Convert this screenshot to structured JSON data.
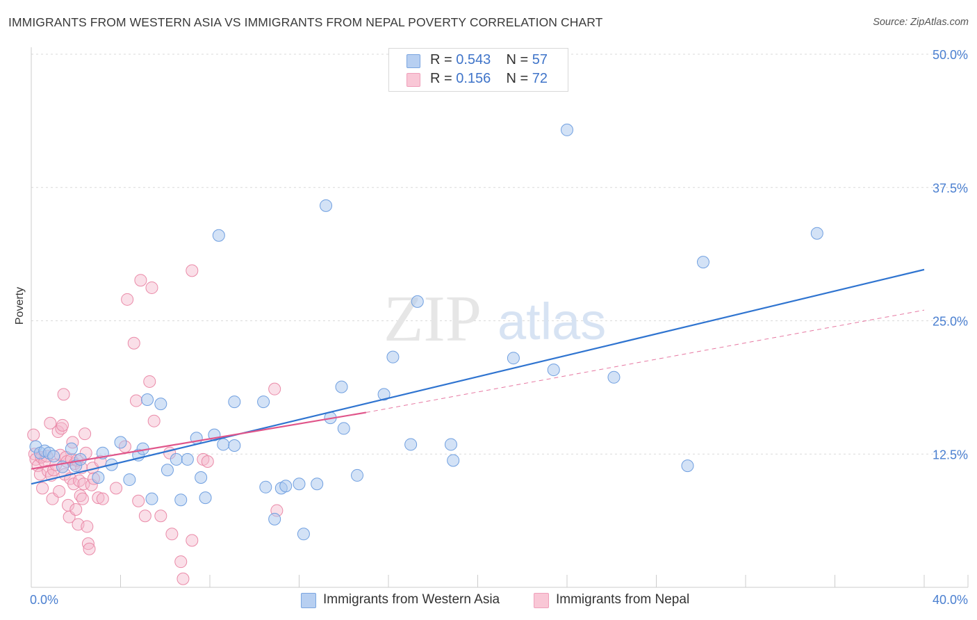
{
  "header": {
    "title": "IMMIGRANTS FROM WESTERN ASIA VS IMMIGRANTS FROM NEPAL POVERTY CORRELATION CHART",
    "source": "Source: ZipAtlas.com"
  },
  "watermark": {
    "zip": "ZIP",
    "atlas": "atlas"
  },
  "legend": {
    "items": [
      {
        "r_label": "R =",
        "r_value": "0.543",
        "n_label": "N =",
        "n_value": "57"
      },
      {
        "r_label": "R =",
        "r_value": "0.156",
        "n_label": "N =",
        "n_value": "72"
      }
    ]
  },
  "bottom_legend": {
    "series_a": "Immigrants from Western Asia",
    "series_b": "Immigrants from Nepal"
  },
  "colors": {
    "blue_fill": "#a8c6ee",
    "blue_stroke": "#6f9fe0",
    "blue_line": "#2f74d0",
    "pink_fill": "#f5b8cb",
    "pink_stroke": "#ea8aa8",
    "pink_line": "#e0558a",
    "tick": "#4a7fd0",
    "grid": "#d9d9d9"
  },
  "chart_data": {
    "type": "scatter",
    "title": "IMMIGRANTS FROM WESTERN ASIA VS IMMIGRANTS FROM NEPAL POVERTY CORRELATION CHART",
    "xlabel": "",
    "ylabel": "Poverty",
    "xlim": [
      0,
      40
    ],
    "ylim": [
      0,
      50
    ],
    "x_tick_labels": [
      "0.0%",
      "40.0%"
    ],
    "y_ticks": [
      12.5,
      25.0,
      37.5,
      50.0
    ],
    "y_tick_labels": [
      "12.5%",
      "25.0%",
      "37.5%",
      "50.0%"
    ],
    "grid": true,
    "legend_position": "top-center",
    "series": [
      {
        "name": "Immigrants from Western Asia",
        "color": "#a8c6ee",
        "points": [
          [
            0.2,
            13.2
          ],
          [
            0.4,
            12.6
          ],
          [
            0.6,
            12.8
          ],
          [
            0.8,
            12.6
          ],
          [
            1.0,
            12.3
          ],
          [
            1.4,
            11.3
          ],
          [
            1.8,
            13.0
          ],
          [
            2.0,
            11.4
          ],
          [
            2.2,
            12.0
          ],
          [
            3.0,
            10.3
          ],
          [
            3.2,
            12.6
          ],
          [
            3.6,
            11.5
          ],
          [
            4.0,
            13.6
          ],
          [
            4.4,
            10.1
          ],
          [
            4.8,
            12.4
          ],
          [
            5.0,
            13.0
          ],
          [
            5.2,
            17.6
          ],
          [
            5.4,
            8.3
          ],
          [
            5.8,
            17.2
          ],
          [
            6.1,
            11.0
          ],
          [
            6.5,
            12.0
          ],
          [
            6.7,
            8.2
          ],
          [
            7.0,
            12.0
          ],
          [
            7.4,
            14.0
          ],
          [
            7.6,
            10.3
          ],
          [
            7.8,
            8.4
          ],
          [
            8.2,
            14.3
          ],
          [
            8.6,
            13.4
          ],
          [
            8.4,
            33.0
          ],
          [
            9.1,
            17.4
          ],
          [
            9.1,
            13.3
          ],
          [
            10.4,
            17.4
          ],
          [
            10.5,
            9.4
          ],
          [
            10.9,
            6.4
          ],
          [
            11.2,
            9.3
          ],
          [
            11.4,
            9.5
          ],
          [
            12.0,
            9.7
          ],
          [
            12.2,
            5.0
          ],
          [
            12.8,
            9.7
          ],
          [
            13.2,
            35.8
          ],
          [
            13.4,
            15.9
          ],
          [
            13.9,
            18.8
          ],
          [
            14.0,
            14.9
          ],
          [
            14.6,
            10.5
          ],
          [
            15.8,
            18.1
          ],
          [
            16.2,
            21.6
          ],
          [
            17.0,
            13.4
          ],
          [
            17.3,
            26.8
          ],
          [
            18.8,
            13.4
          ],
          [
            18.9,
            11.9
          ],
          [
            21.6,
            21.5
          ],
          [
            23.4,
            20.4
          ],
          [
            24.0,
            42.9
          ],
          [
            26.1,
            19.7
          ],
          [
            29.4,
            11.4
          ],
          [
            30.1,
            30.5
          ],
          [
            35.2,
            33.2
          ]
        ],
        "trend": {
          "x": [
            0,
            40
          ],
          "y": [
            9.7,
            29.8
          ],
          "style": "solid"
        }
      },
      {
        "name": "Immigrants from Nepal",
        "color": "#f5b8cb",
        "points": [
          [
            0.1,
            14.3
          ],
          [
            0.15,
            12.5
          ],
          [
            0.2,
            12.0
          ],
          [
            0.3,
            11.4
          ],
          [
            0.4,
            10.6
          ],
          [
            0.45,
            12.2
          ],
          [
            0.5,
            9.3
          ],
          [
            0.6,
            11.8
          ],
          [
            0.7,
            12.3
          ],
          [
            0.75,
            10.9
          ],
          [
            0.85,
            15.4
          ],
          [
            0.9,
            10.5
          ],
          [
            0.95,
            8.3
          ],
          [
            1.0,
            11.0
          ],
          [
            1.1,
            11.5
          ],
          [
            1.2,
            14.6
          ],
          [
            1.25,
            9.0
          ],
          [
            1.3,
            12.4
          ],
          [
            1.35,
            14.9
          ],
          [
            1.4,
            15.2
          ],
          [
            1.45,
            18.1
          ],
          [
            1.5,
            10.6
          ],
          [
            1.55,
            12.2
          ],
          [
            1.6,
            11.8
          ],
          [
            1.65,
            7.7
          ],
          [
            1.7,
            6.6
          ],
          [
            1.75,
            10.2
          ],
          [
            1.8,
            12.0
          ],
          [
            1.85,
            13.6
          ],
          [
            1.9,
            9.7
          ],
          [
            1.95,
            11.6
          ],
          [
            2.0,
            7.3
          ],
          [
            2.05,
            11.9
          ],
          [
            2.1,
            5.9
          ],
          [
            2.15,
            10.0
          ],
          [
            2.2,
            8.6
          ],
          [
            2.25,
            11.2
          ],
          [
            2.3,
            8.3
          ],
          [
            2.35,
            9.7
          ],
          [
            2.4,
            14.4
          ],
          [
            2.45,
            12.6
          ],
          [
            2.5,
            5.7
          ],
          [
            2.55,
            4.1
          ],
          [
            2.6,
            3.6
          ],
          [
            2.7,
            9.6
          ],
          [
            2.75,
            11.2
          ],
          [
            2.8,
            10.2
          ],
          [
            3.0,
            8.4
          ],
          [
            3.1,
            11.8
          ],
          [
            3.2,
            8.3
          ],
          [
            3.8,
            9.3
          ],
          [
            4.2,
            13.2
          ],
          [
            4.3,
            27.0
          ],
          [
            4.6,
            22.9
          ],
          [
            4.7,
            17.5
          ],
          [
            4.8,
            8.1
          ],
          [
            4.9,
            28.8
          ],
          [
            5.1,
            6.7
          ],
          [
            5.3,
            19.3
          ],
          [
            5.4,
            28.1
          ],
          [
            5.5,
            15.6
          ],
          [
            5.8,
            6.7
          ],
          [
            6.2,
            12.6
          ],
          [
            6.3,
            5.0
          ],
          [
            6.7,
            2.4
          ],
          [
            6.8,
            0.8
          ],
          [
            7.2,
            29.7
          ],
          [
            7.2,
            4.4
          ],
          [
            7.7,
            12.0
          ],
          [
            7.9,
            11.8
          ],
          [
            10.9,
            18.6
          ],
          [
            11.0,
            7.2
          ]
        ],
        "trend": {
          "x": [
            0,
            15
          ],
          "y": [
            11.1,
            16.4
          ],
          "style": "solid"
        },
        "trend_extension": {
          "x": [
            15,
            40
          ],
          "y": [
            16.4,
            26.0
          ],
          "style": "dashed"
        }
      }
    ]
  }
}
